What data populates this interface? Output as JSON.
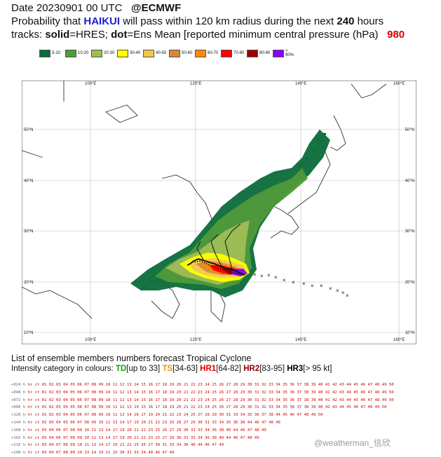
{
  "header": {
    "line1_date": "Date 20230901 00 UTC",
    "line1_brand": "@ECMWF",
    "line2_pre": "Probability that ",
    "storm_name": "HAIKUI",
    "line2_mid": " will pass within 120 km radius during the next ",
    "hours": "240",
    "line2_post": " hours",
    "line3_tracks": "tracks: ",
    "solid": "solid",
    "line3_mid": "=HRES; ",
    "dot": "dot",
    "line3_post": "=Ens Mean [reported minimum central pressure (hPa)",
    "pressure": "980"
  },
  "legend": [
    {
      "label": "5-10",
      "color": "#0b6b3a"
    },
    {
      "label": "10-20",
      "color": "#4f9a3a"
    },
    {
      "label": "20-30",
      "color": "#9fbd55"
    },
    {
      "label": "30-40",
      "color": "#ffff00"
    },
    {
      "label": "40-50",
      "color": "#f0c850"
    },
    {
      "label": "50-60",
      "color": "#d68a3a"
    },
    {
      "label": "60-70",
      "color": "#ff8c00"
    },
    {
      "label": "70-80",
      "color": "#ff0000"
    },
    {
      "label": "80-90",
      "color": "#990000"
    },
    {
      "label": "> 90%",
      "color": "#8a00ff"
    }
  ],
  "map": {
    "lon_labels": [
      "100°E",
      "120°E",
      "140°E",
      "160°E"
    ],
    "lat_labels": [
      "50°N",
      "40°N",
      "30°N",
      "20°N",
      "10°N"
    ]
  },
  "footer": {
    "title": "List of ensemble members numbers forecast Tropical Cyclone",
    "intensity_pre": "Intensity category in colours: ",
    "td": "TD",
    "td_range": "[up to 33]",
    "ts": "TS",
    "ts_range": "[34-63]",
    "hr1": "HR1",
    "hr1_range": "[64-82]",
    "hr2": "HR2",
    "hr2_range": "[83-95]",
    "hr3": "HR3",
    "hr3_range": "[> 95 kt]"
  },
  "member_rows": [
    {
      "label": "+024 h",
      "text": "hr ct 01 02 03 04 05 06 07 08 09 10 11 12 13 14 15 16 17 18 19 20 21 22 23 24 25 26 27 28 29 30 31 32 33 34 35 36 37 38 39 40 41 42 43 44 45 46 47 48 49 50"
    },
    {
      "label": "+048 h",
      "text": "hr ct 01 02 03 04 05 06 07 08 09 10 11 12 13 14 15 16 17 18 19 20 21 22 23 24 25 26 27 28 29 30 31 32 33 34 35 36 37 38 39 40 41 42 43 44 45 46 47 48 49 50"
    },
    {
      "label": "+072 h",
      "text": "hr ct 01 02 03 04 05 06 07 08 09 10 11 12 13 14 15 16 17 18 19 20 21 22 23 24 25 26 27 28 29 30 31 32 33 34 35 36 37 38 39 40 41 42 43 44 45 46 47 48 49 50"
    },
    {
      "label": "+096 h",
      "text": "hr ct 01 02 03 04 05 06 07 08 09 10 11 12 13 14 15 16 17 18 19 20 21 22 23 24 25 26 27 28 29 30 31 32 33 34 35 36 37 38 39 40    42 43 44 45 46 47 48 49 50"
    },
    {
      "label": "+120 h",
      "text": "hr ct 01 02 03 04 05 06 07 08 09 10 11    13 14    16 17    19 20 21 22 23 24 25    27 28 29 30 31    33 34 35 36 37 38          44 45 46 47 48 49 50"
    },
    {
      "label": "+144 h",
      "text": "hr ct    02 03 04 05 06 07 08 09 10 11    13 14          17    19 20 21 22 23    25 26 27    29 30 31    33 34 35 36    38          44    46 47 48 49"
    },
    {
      "label": "+168 h",
      "text": "hr ct       03 04    06 07 08 09 10 11    13 14          17    19 20 21 22 23    25 26 27    29 30 31    33 34    36    38    40    44    46 47 48 49"
    },
    {
      "label": "+192 h",
      "text": "hr ct       03 04    06 07 08 09 10 11    13 14          17    19 20 21 22 23    25    27    29 30 31    33 34    36    38    40    44    46 47 48 49"
    },
    {
      "label": "+216 h",
      "text": "hr ct       03 04       07 08 09 10 11    13 14          17    19    21 22       25 26 27       30 31    33 34    36          40    44    46 47    49"
    },
    {
      "label": "+240 h",
      "text": "hr ct       03 04       07 08 09 10       13 14                19    21          25             30 31    33 34                40          46 47    49"
    }
  ],
  "watermark": "@weatherman_信欣"
}
